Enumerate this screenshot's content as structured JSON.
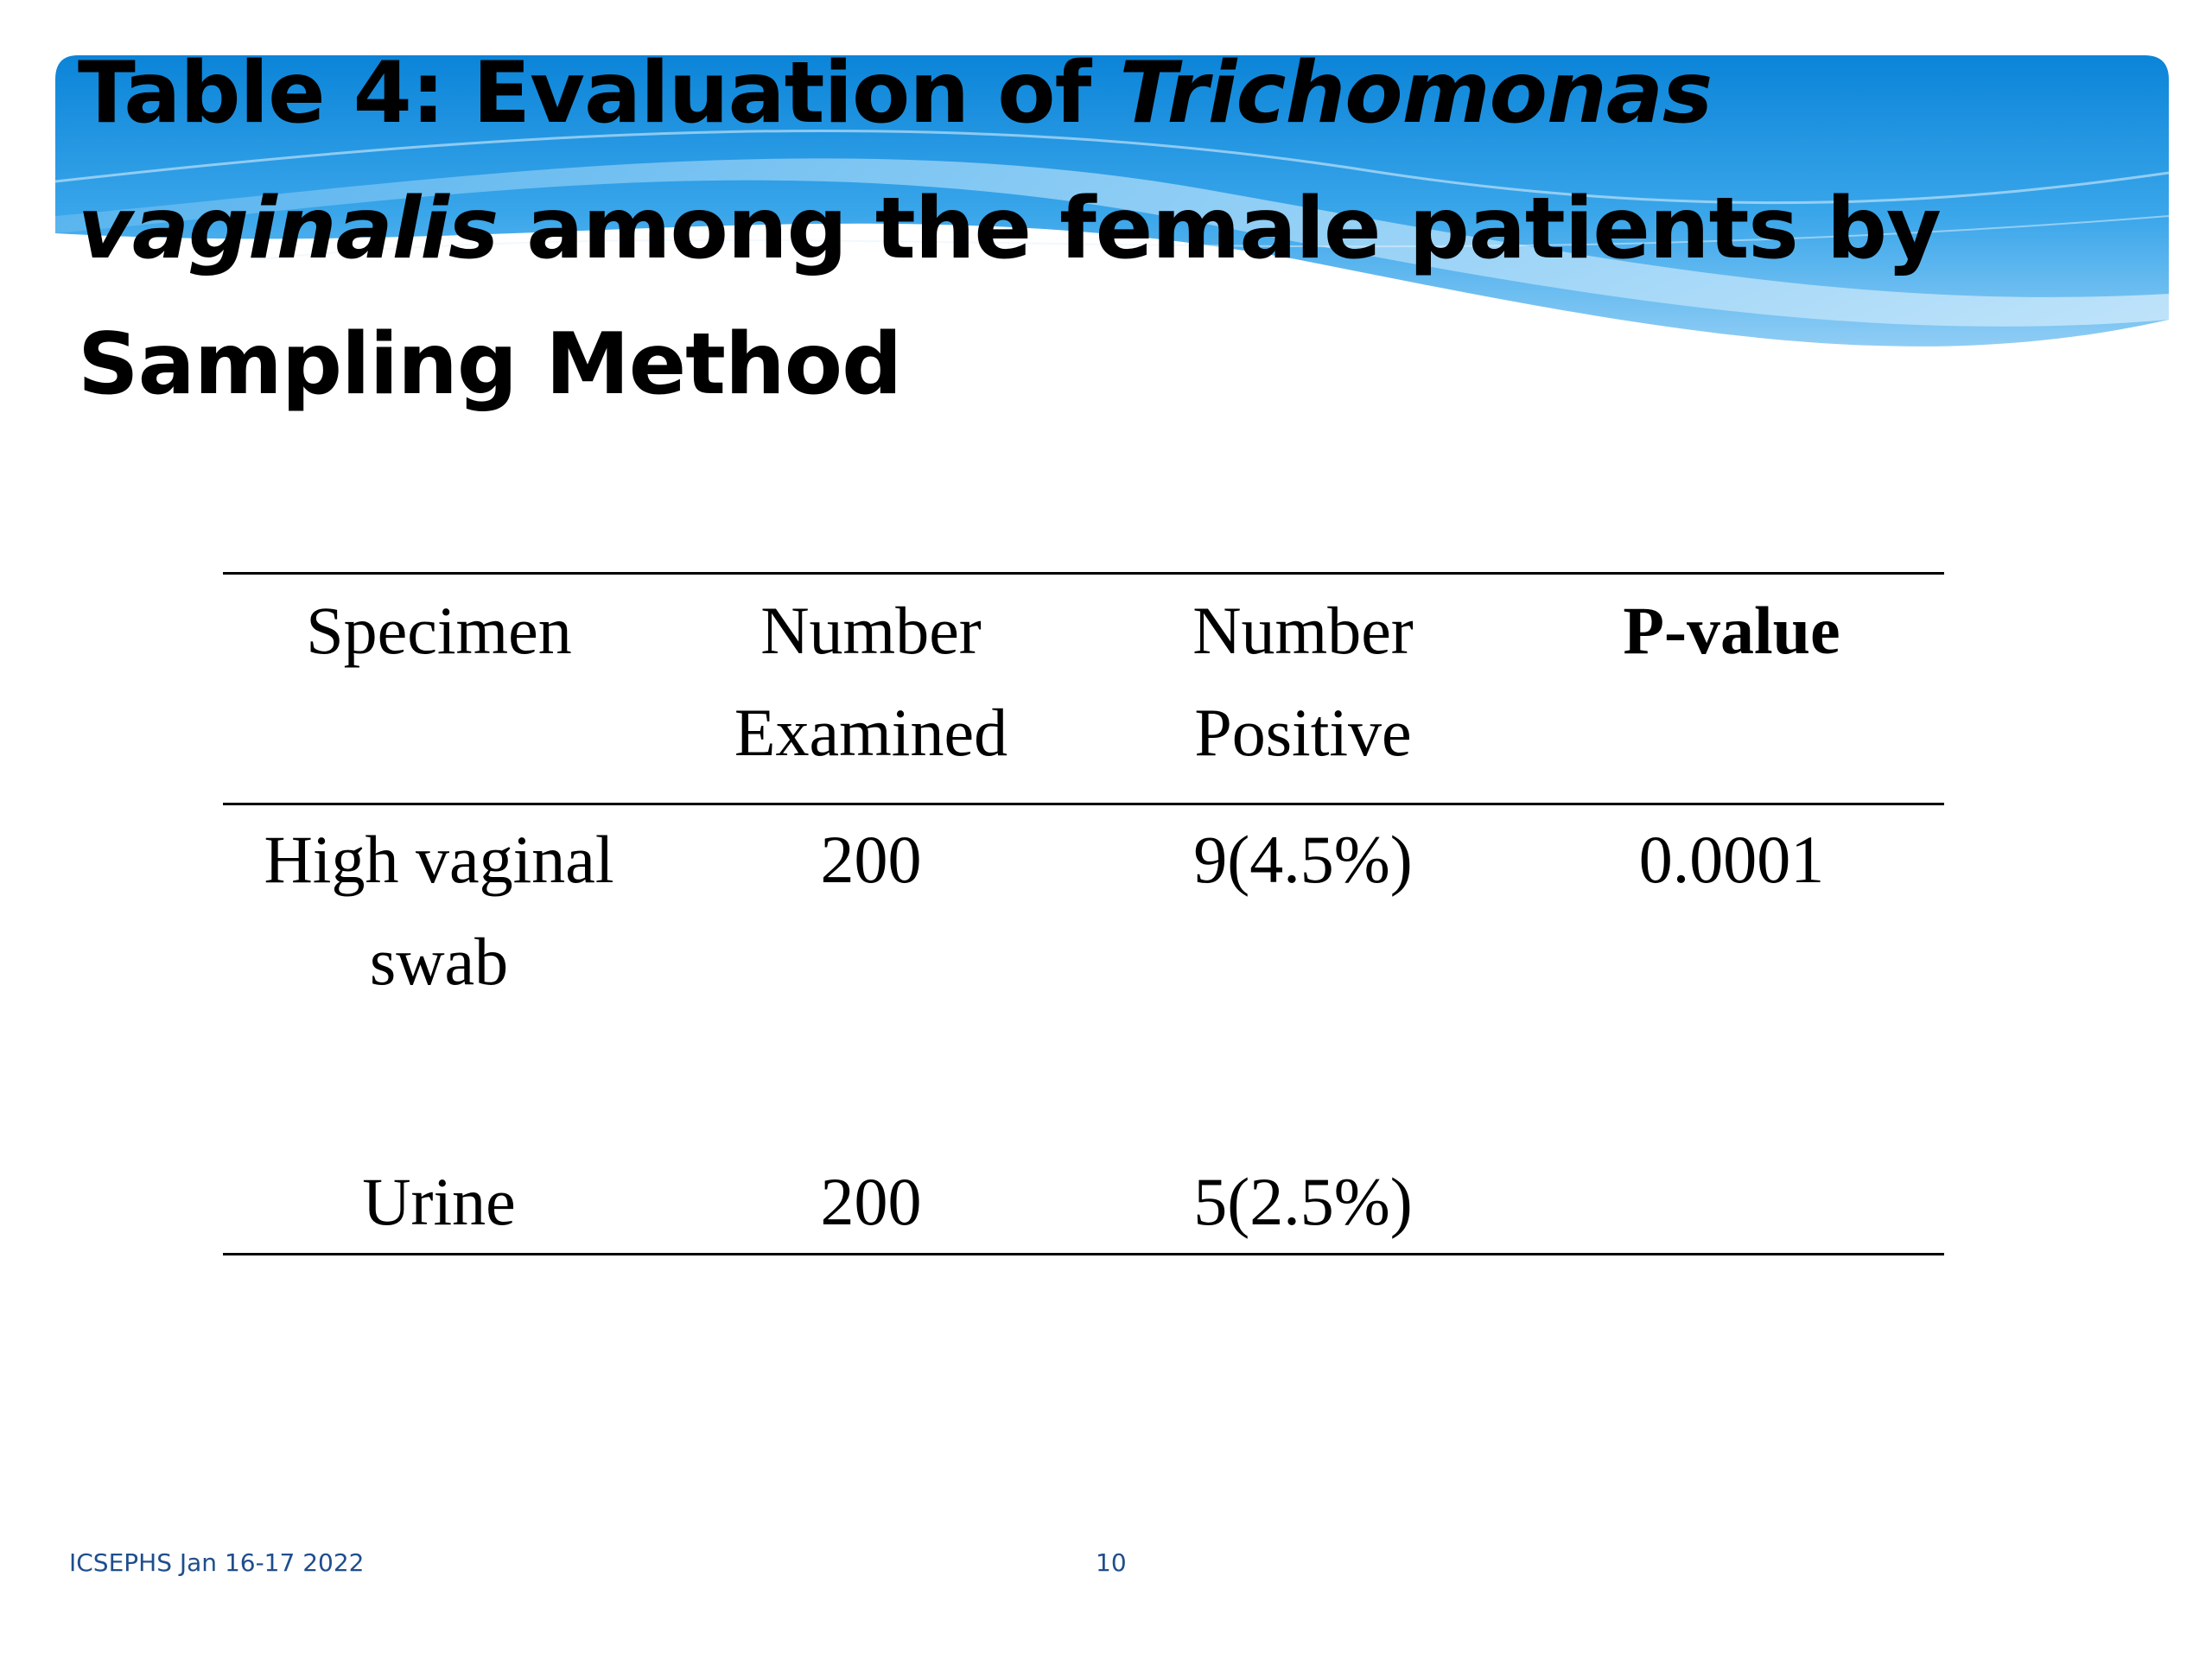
{
  "slide": {
    "title_part1": "Table 4: Evaluation of ",
    "title_italic1": "Trichomonas vaginalis",
    "title_part2": " among the female patients by Sampling Method"
  },
  "table": {
    "headers": [
      {
        "line1": "Specimen",
        "line2": ""
      },
      {
        "line1": "Number",
        "line2": "Examined"
      },
      {
        "line1": "Number",
        "line2": "Positive"
      },
      {
        "line1": "P-value",
        "line2": ""
      }
    ],
    "rows": [
      {
        "specimen_line1": "High vaginal",
        "specimen_line2": "swab",
        "examined": "200",
        "positive": "9(4.5%)"
      },
      {
        "specimen_line1": "Urine",
        "specimen_line2": "",
        "examined": "200",
        "positive": "5(2.5%)"
      }
    ],
    "p_value": "0.0001"
  },
  "footer": {
    "left_text": "ICSEPHS Jan 16-17 2022",
    "page_number": "10"
  },
  "colors": {
    "banner_blue": "#1a8fe0",
    "banner_light": "#9fd3f7",
    "footer_text": "#1f4e8c"
  }
}
